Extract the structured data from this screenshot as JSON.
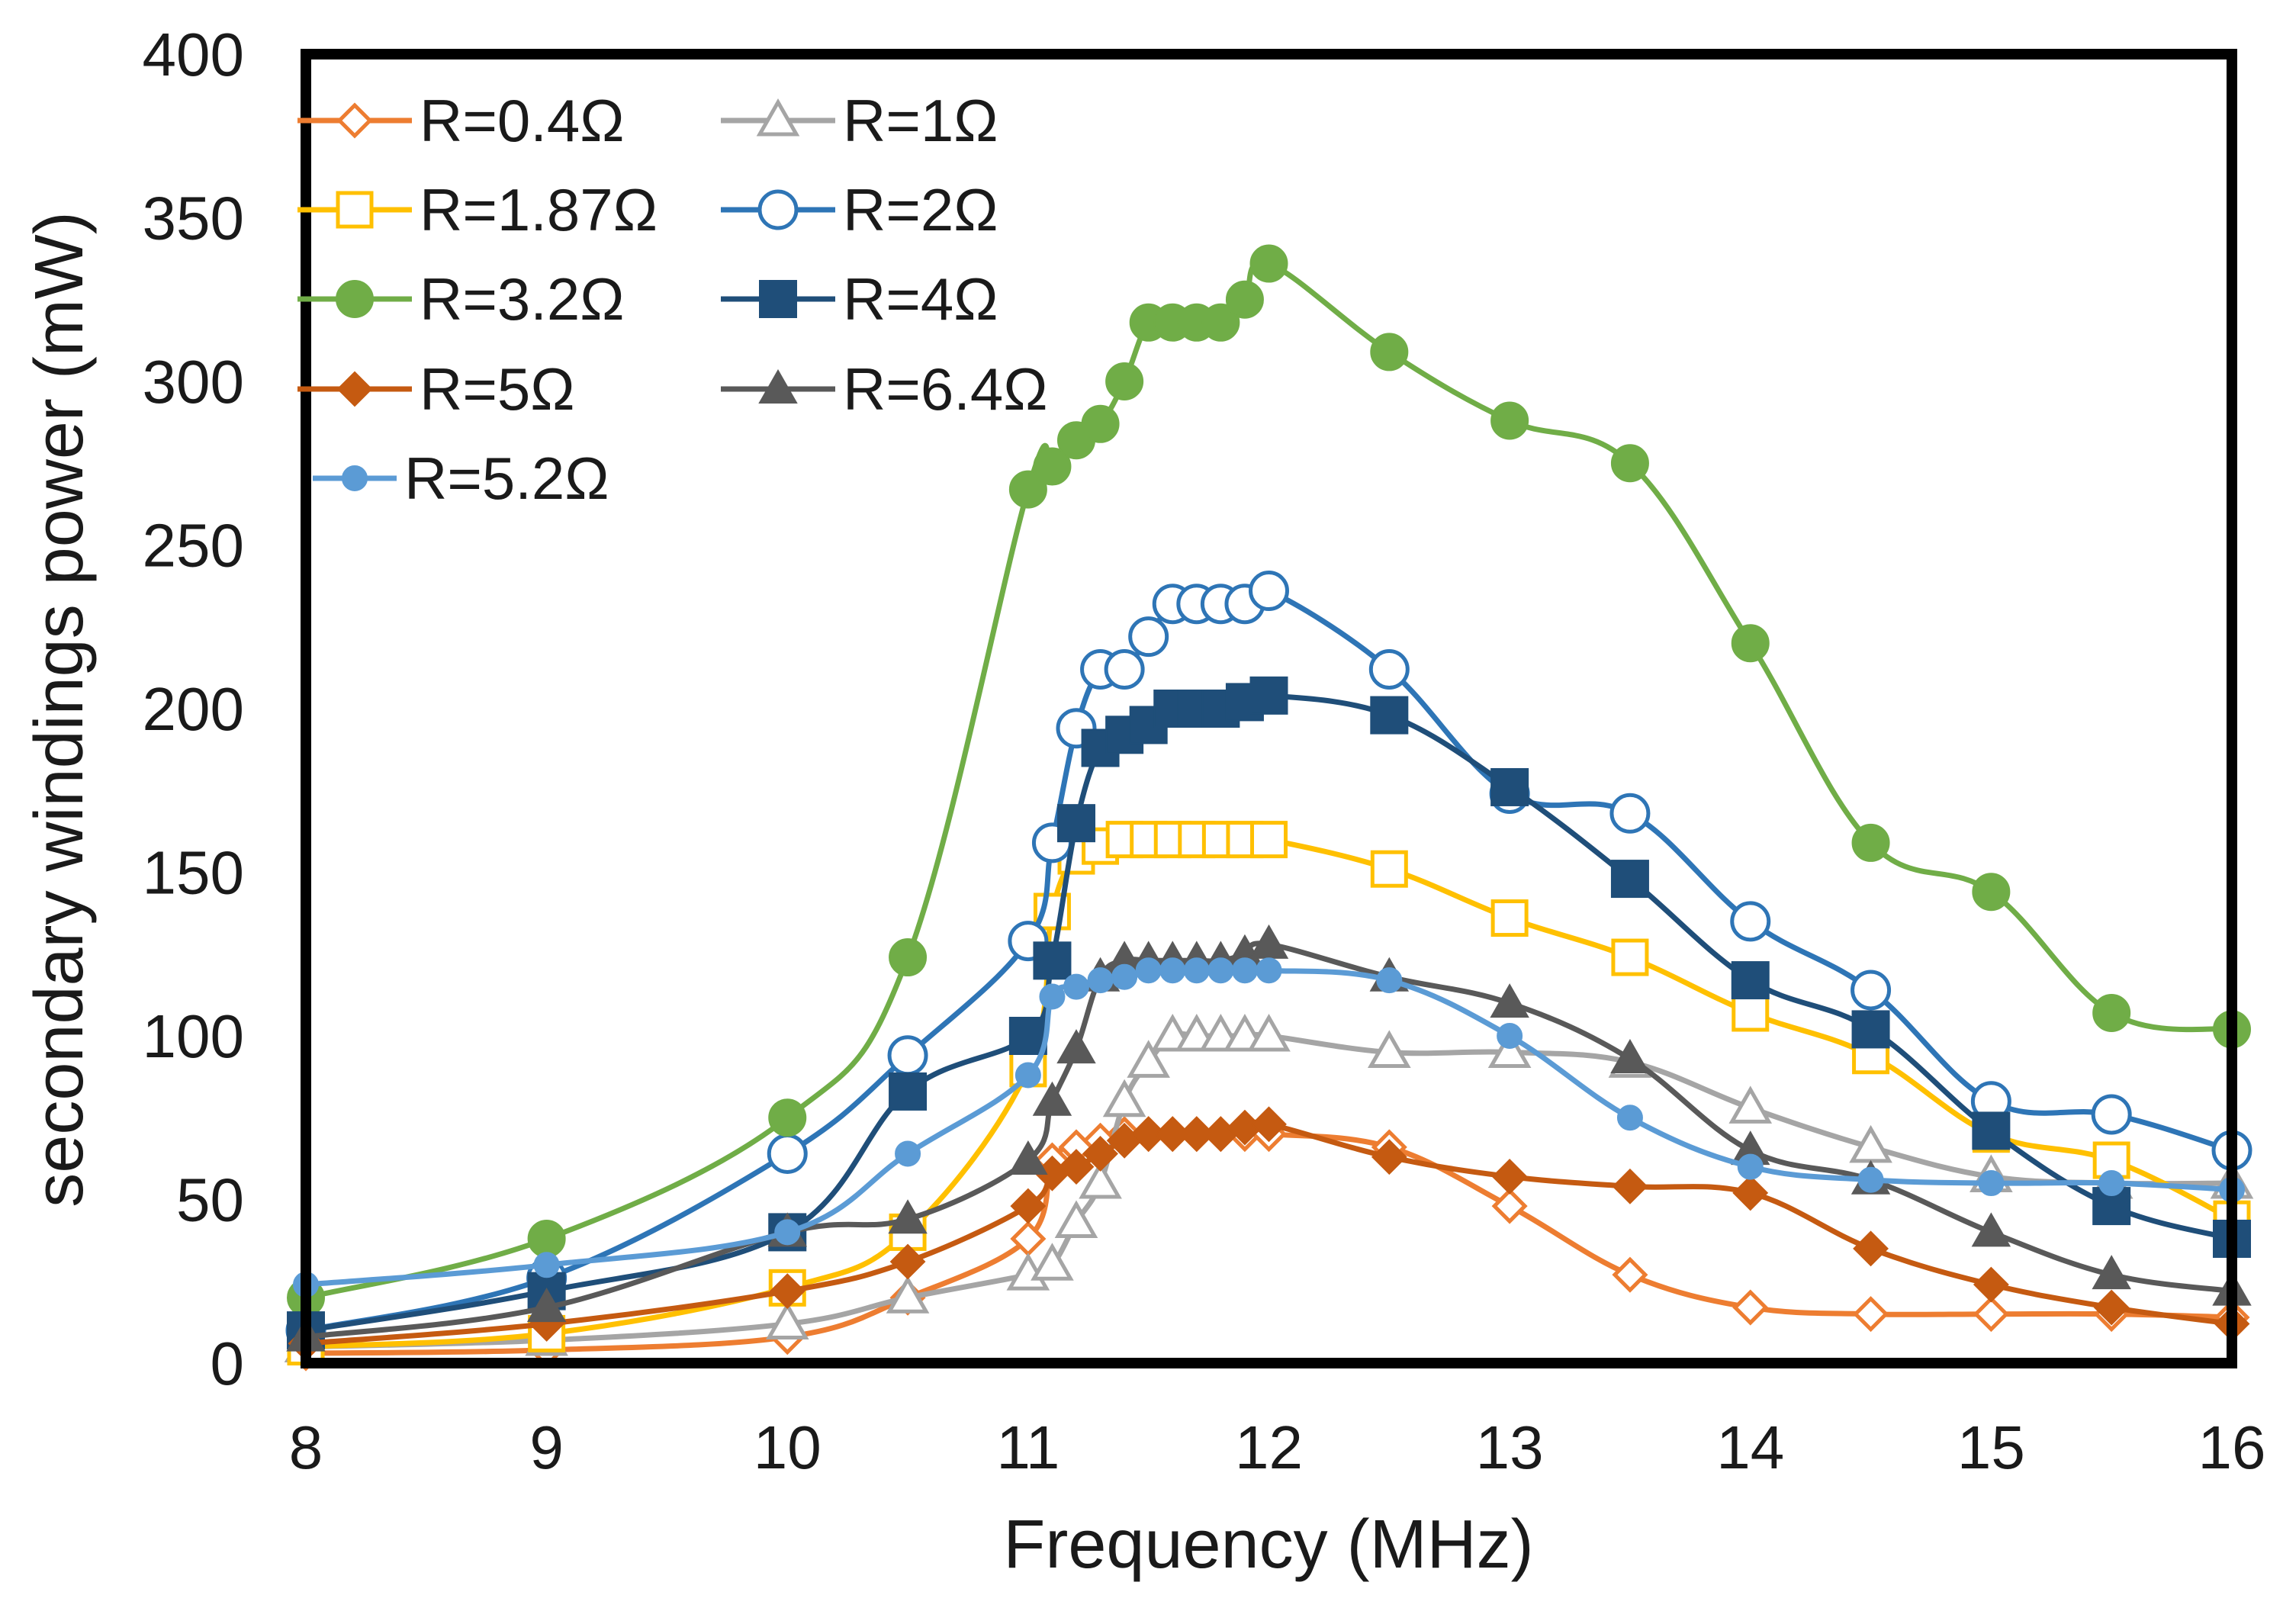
{
  "chart_data": {
    "type": "line",
    "title": "",
    "xlabel": "Frequency (MHz)",
    "ylabel": "secondary windings power (mW)",
    "xlim": [
      8,
      16
    ],
    "ylim": [
      0,
      400
    ],
    "xticks": [
      "8",
      "9",
      "10",
      "11",
      "12",
      "13",
      "14",
      "15",
      "16"
    ],
    "yticks": [
      "0",
      "50",
      "100",
      "150",
      "200",
      "250",
      "300",
      "350",
      "400"
    ],
    "grid": false,
    "legend_position": "top-left",
    "series": [
      {
        "name": "R=0.4Ω",
        "color": "#ED7D31",
        "marker": "diamond",
        "filled": false,
        "x": [
          8,
          9,
          10,
          10.5,
          11,
          11.1,
          11.2,
          11.3,
          11.4,
          11.5,
          11.6,
          11.7,
          11.8,
          11.9,
          12,
          12.5,
          13,
          13.5,
          14,
          14.5,
          15,
          15.5,
          16
        ],
        "y": [
          3,
          4,
          8,
          20,
          38,
          62,
          66,
          68,
          70,
          70,
          70,
          70,
          70,
          70,
          70,
          66,
          48,
          27,
          17,
          15,
          15,
          15,
          14
        ]
      },
      {
        "name": "R=1Ω",
        "color": "#A5A5A5",
        "marker": "triangle",
        "filled": false,
        "x": [
          8,
          9,
          10,
          10.5,
          11,
          11.1,
          11.2,
          11.3,
          11.4,
          11.5,
          11.6,
          11.7,
          11.8,
          11.9,
          12,
          12.5,
          13,
          13.5,
          14,
          14.5,
          15,
          15.5,
          16
        ],
        "y": [
          5,
          7,
          12,
          20,
          27,
          30,
          43,
          55,
          80,
          92,
          100,
          100,
          100,
          100,
          100,
          95,
          95,
          92,
          78,
          66,
          57,
          55,
          55
        ]
      },
      {
        "name": "R=1.87Ω",
        "color": "#FFC000",
        "marker": "square",
        "filled": false,
        "x": [
          8,
          9,
          10,
          10.5,
          11,
          11.1,
          11.2,
          11.3,
          11.4,
          11.5,
          11.6,
          11.7,
          11.8,
          11.9,
          12,
          12.5,
          13,
          13.5,
          14,
          14.5,
          15,
          15.5,
          16
        ],
        "y": [
          5,
          9,
          23,
          40,
          90,
          138,
          155,
          158,
          160,
          160,
          160,
          160,
          160,
          160,
          160,
          151,
          136,
          124,
          107,
          94,
          70,
          62,
          44
        ]
      },
      {
        "name": "R=2Ω",
        "color": "#2E75B6",
        "marker": "circle",
        "filled": false,
        "x": [
          8,
          9,
          10,
          10.5,
          11,
          11.1,
          11.2,
          11.3,
          11.4,
          11.5,
          11.6,
          11.7,
          11.8,
          11.9,
          12,
          12.5,
          13,
          13.5,
          14,
          14.5,
          15,
          15.5,
          16
        ],
        "y": [
          10,
          26,
          64,
          94,
          129,
          159,
          194,
          212,
          212,
          222,
          232,
          232,
          232,
          232,
          236,
          212,
          174,
          168,
          135,
          114,
          80,
          76,
          65
        ]
      },
      {
        "name": "R=3.2Ω",
        "color": "#70AD47",
        "marker": "circle",
        "filled": true,
        "x": [
          8,
          9,
          10,
          10.5,
          11,
          11.1,
          11.2,
          11.3,
          11.4,
          11.5,
          11.6,
          11.7,
          11.8,
          11.9,
          12,
          12.5,
          13,
          13.5,
          14,
          14.5,
          15,
          15.5,
          16
        ],
        "y": [
          20,
          38,
          75,
          124,
          267,
          274,
          282,
          287,
          300,
          318,
          318,
          318,
          318,
          325,
          336,
          309,
          288,
          275,
          220,
          159,
          144,
          107,
          102
        ]
      },
      {
        "name": "R=4Ω",
        "color": "#1F4E79",
        "marker": "square",
        "filled": true,
        "x": [
          8,
          9,
          10,
          10.5,
          11,
          11.1,
          11.2,
          11.3,
          11.4,
          11.5,
          11.6,
          11.7,
          11.8,
          11.9,
          12,
          12.5,
          13,
          13.5,
          14,
          14.5,
          15,
          15.5,
          16
        ],
        "y": [
          10,
          22,
          40,
          83,
          100,
          123,
          165,
          188,
          192,
          195,
          200,
          200,
          200,
          202,
          204,
          198,
          176,
          148,
          117,
          102,
          71,
          48,
          38
        ]
      },
      {
        "name": "R=5Ω",
        "color": "#C55A11",
        "marker": "diamond",
        "filled": true,
        "x": [
          8,
          9,
          10,
          10.5,
          11,
          11.1,
          11.2,
          11.3,
          11.4,
          11.5,
          11.6,
          11.7,
          11.8,
          11.9,
          12,
          12.5,
          13,
          13.5,
          14,
          14.5,
          15,
          15.5,
          16
        ],
        "y": [
          6,
          12,
          22,
          31,
          48,
          58,
          60,
          64,
          68,
          70,
          70,
          70,
          70,
          72,
          73,
          63,
          57,
          54,
          52,
          35,
          24,
          17,
          12
        ]
      },
      {
        "name": "R=6.4Ω",
        "color": "#595959",
        "marker": "triangle",
        "filled": true,
        "x": [
          8,
          9,
          10,
          10.5,
          11,
          11.1,
          11.2,
          11.3,
          11.4,
          11.5,
          11.6,
          11.7,
          11.8,
          11.9,
          12,
          12.5,
          13,
          13.5,
          14,
          14.5,
          15,
          15.5,
          16
        ],
        "y": [
          8,
          17,
          40,
          44,
          62,
          80,
          96,
          118,
          123,
          123,
          123,
          123,
          123,
          125,
          128,
          118,
          110,
          93,
          65,
          56,
          40,
          27,
          22
        ]
      },
      {
        "name": "R=5.2Ω",
        "color": "#5B9BD5",
        "marker": "circle-small",
        "filled": true,
        "x": [
          8,
          9,
          10,
          10.5,
          11,
          11.1,
          11.2,
          11.3,
          11.4,
          11.5,
          11.6,
          11.7,
          11.8,
          11.9,
          12,
          12.5,
          13,
          13.5,
          14,
          14.5,
          15,
          15.5,
          16
        ],
        "y": [
          24,
          30,
          40,
          64,
          88,
          112,
          115,
          117,
          118,
          120,
          120,
          120,
          120,
          120,
          120,
          117,
          100,
          75,
          60,
          56,
          55,
          55,
          53
        ]
      }
    ]
  }
}
